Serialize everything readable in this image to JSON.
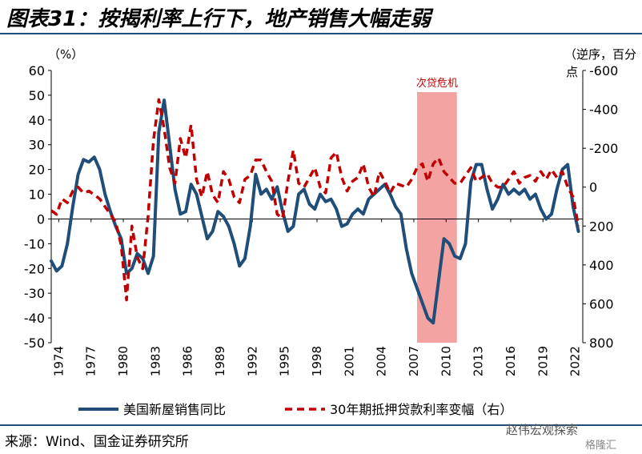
{
  "figure": {
    "title": "图表31：按揭利率上行下，地产销售大幅走弱",
    "source": "来源：Wind、国金证券研究所",
    "watermark": "赵伟宏观探索",
    "watermark2": "格隆汇"
  },
  "chart_data": {
    "type": "line",
    "left_axis_unit": "（%）",
    "right_axis_unit": "（逆序，百分点）",
    "left_ylim": [
      -50,
      60
    ],
    "left_ticks": [
      60,
      50,
      40,
      30,
      20,
      10,
      0,
      -10,
      -20,
      -30,
      -40,
      -50
    ],
    "right_ylim_inverted": [
      800,
      -600
    ],
    "right_ticks": [
      -600,
      -400,
      -200,
      0,
      200,
      400,
      600,
      800
    ],
    "x_ticks": [
      "1974",
      "1977",
      "1980",
      "1983",
      "1986",
      "1989",
      "1992",
      "1995",
      "1998",
      "2001",
      "2004",
      "2007",
      "2010",
      "2013",
      "2016",
      "2019",
      "2022"
    ],
    "x_range": [
      1973.3,
      2022.7
    ],
    "shaded_region": {
      "label": "次贷危机",
      "x_start": 2007.3,
      "x_end": 2011.0
    },
    "grid": false,
    "legend_position": "bottom",
    "series": [
      {
        "name": "美国新屋销售同比",
        "axis": "left",
        "color": "#1f4e79",
        "style": "solid",
        "x": [
          1973.3,
          1973.8,
          1974.3,
          1974.8,
          1975.3,
          1975.8,
          1976.3,
          1976.8,
          1977.3,
          1977.8,
          1978.3,
          1978.8,
          1979.3,
          1979.8,
          1980.3,
          1980.8,
          1981.3,
          1981.8,
          1982.3,
          1982.8,
          1983.3,
          1983.8,
          1984.3,
          1984.8,
          1985.3,
          1985.8,
          1986.3,
          1986.8,
          1987.3,
          1987.8,
          1988.3,
          1988.8,
          1989.3,
          1989.8,
          1990.3,
          1990.8,
          1991.3,
          1991.8,
          1992.3,
          1992.8,
          1993.3,
          1993.8,
          1994.3,
          1994.8,
          1995.3,
          1995.8,
          1996.3,
          1996.8,
          1997.3,
          1997.8,
          1998.3,
          1998.8,
          1999.3,
          1999.8,
          2000.3,
          2000.8,
          2001.3,
          2001.8,
          2002.3,
          2002.8,
          2003.3,
          2003.8,
          2004.3,
          2004.8,
          2005.3,
          2005.8,
          2006.3,
          2006.8,
          2007.3,
          2007.8,
          2008.3,
          2008.8,
          2009.3,
          2009.8,
          2010.3,
          2010.8,
          2011.3,
          2011.8,
          2012.3,
          2012.8,
          2013.3,
          2013.8,
          2014.3,
          2014.8,
          2015.3,
          2015.8,
          2016.3,
          2016.8,
          2017.3,
          2017.8,
          2018.3,
          2018.8,
          2019.3,
          2019.8,
          2020.3,
          2020.8,
          2021.3,
          2021.8,
          2022.3
        ],
        "values": [
          -17,
          -21,
          -19,
          -10,
          5,
          18,
          24,
          23,
          25,
          20,
          10,
          3,
          -3,
          -8,
          -22,
          -20,
          -14,
          -16,
          -22,
          -15,
          35,
          48,
          30,
          12,
          2,
          3,
          14,
          10,
          1,
          -8,
          -5,
          3,
          1,
          -3,
          -10,
          -19,
          -16,
          -3,
          18,
          10,
          12,
          8,
          13,
          3,
          -5,
          -3,
          10,
          12,
          6,
          4,
          10,
          7,
          8,
          4,
          -3,
          -2,
          2,
          4,
          2,
          8,
          10,
          12,
          14,
          10,
          5,
          2,
          -12,
          -22,
          -28,
          -34,
          -40,
          -42,
          -25,
          -8,
          -10,
          -15,
          -16,
          -10,
          15,
          22,
          22,
          12,
          4,
          8,
          14,
          10,
          12,
          10,
          12,
          8,
          10,
          4,
          0,
          2,
          12,
          20,
          22,
          5,
          -5
        ]
      },
      {
        "name": "30年期抵押贷款利率变幅（右）",
        "axis": "right",
        "color": "#c00000",
        "style": "dashed",
        "x": [
          1973.3,
          1973.8,
          1974.3,
          1974.8,
          1975.3,
          1975.8,
          1976.3,
          1976.8,
          1977.3,
          1977.8,
          1978.3,
          1978.8,
          1979.3,
          1979.8,
          1980.3,
          1980.8,
          1981.3,
          1981.8,
          1982.3,
          1982.8,
          1983.3,
          1983.8,
          1984.3,
          1984.8,
          1985.3,
          1985.8,
          1986.3,
          1986.8,
          1987.3,
          1987.8,
          1988.3,
          1988.8,
          1989.3,
          1989.8,
          1990.3,
          1990.8,
          1991.3,
          1991.8,
          1992.3,
          1992.8,
          1993.3,
          1993.8,
          1994.3,
          1994.8,
          1995.3,
          1995.8,
          1996.3,
          1996.8,
          1997.3,
          1997.8,
          1998.3,
          1998.8,
          1999.3,
          1999.8,
          2000.3,
          2000.8,
          2001.3,
          2001.8,
          2002.3,
          2002.8,
          2003.3,
          2003.8,
          2004.3,
          2004.8,
          2005.3,
          2005.8,
          2006.3,
          2006.8,
          2007.3,
          2007.8,
          2008.3,
          2008.8,
          2009.3,
          2009.8,
          2010.3,
          2010.8,
          2011.3,
          2011.8,
          2012.3,
          2012.8,
          2013.3,
          2013.8,
          2014.3,
          2014.8,
          2015.3,
          2015.8,
          2016.3,
          2016.8,
          2017.3,
          2017.8,
          2018.3,
          2018.8,
          2019.3,
          2019.8,
          2020.3,
          2020.8,
          2021.3,
          2021.8,
          2022.3
        ],
        "values": [
          120,
          140,
          60,
          80,
          20,
          0,
          30,
          20,
          40,
          60,
          100,
          140,
          180,
          300,
          580,
          200,
          360,
          420,
          150,
          -240,
          -450,
          -300,
          -100,
          -20,
          -250,
          -150,
          -320,
          -40,
          50,
          -80,
          40,
          80,
          -80,
          -40,
          50,
          80,
          -40,
          -60,
          -140,
          -140,
          -80,
          -30,
          140,
          160,
          -30,
          -190,
          -20,
          0,
          -50,
          -100,
          0,
          30,
          -150,
          -180,
          -50,
          20,
          -30,
          -50,
          -120,
          0,
          50,
          -80,
          -30,
          30,
          -20,
          -10,
          0,
          -40,
          -100,
          -120,
          -30,
          -120,
          -150,
          -80,
          -50,
          -20,
          -20,
          -60,
          -100,
          -30,
          -50,
          -70,
          -20,
          0,
          0,
          -40,
          -80,
          -20,
          -50,
          -60,
          -30,
          -80,
          -40,
          -90,
          -50,
          -80,
          0,
          50,
          200
        ]
      }
    ]
  }
}
